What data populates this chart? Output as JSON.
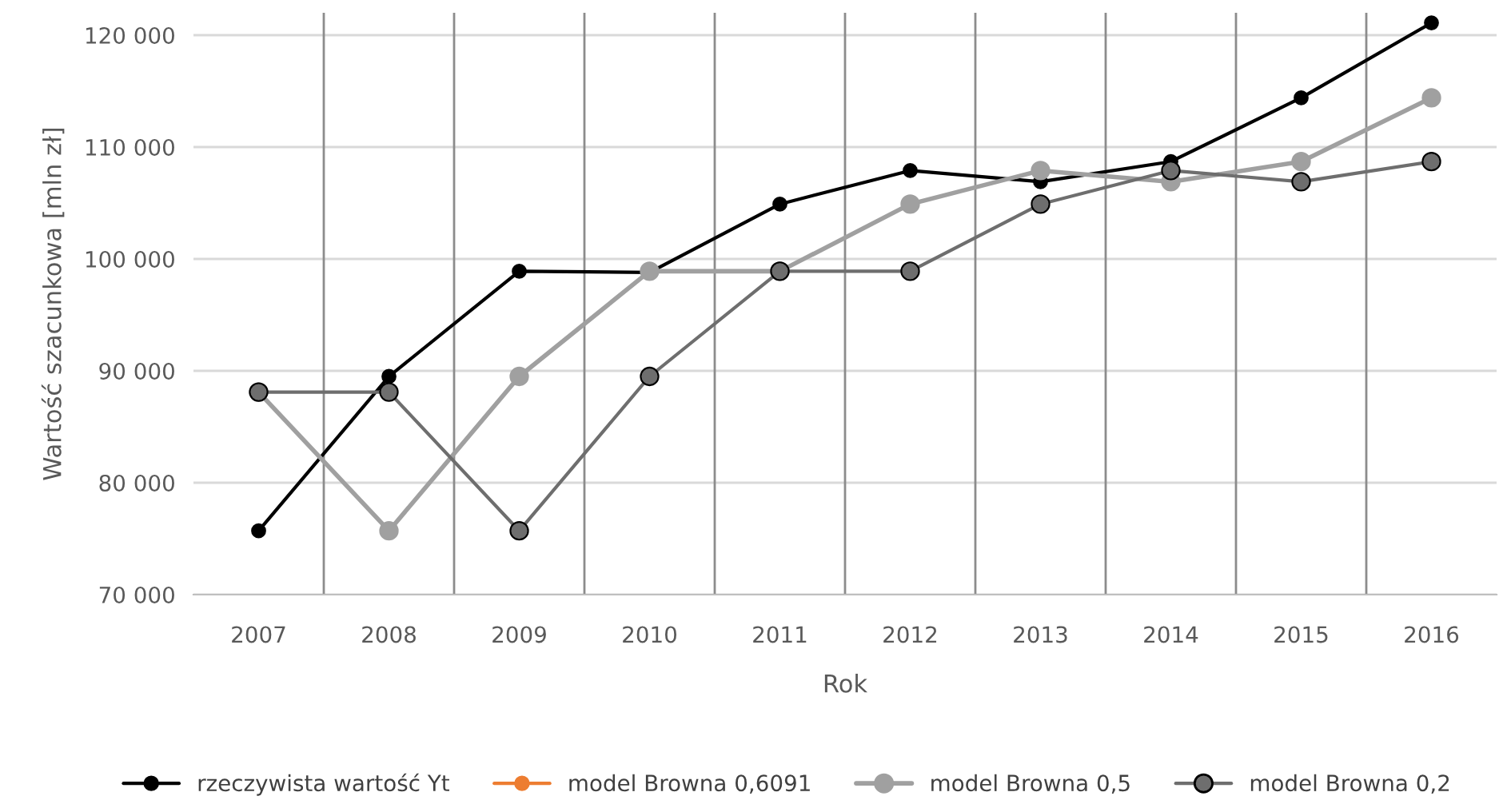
{
  "chart_data": {
    "type": "line",
    "xlabel": "Rok",
    "ylabel": "Wartość szacunkowa [mln zł]",
    "categories": [
      "2007",
      "2008",
      "2009",
      "2010",
      "2011",
      "2012",
      "2013",
      "2014",
      "2015",
      "2016"
    ],
    "series": [
      {
        "name": "rzeczywista wartość Yt",
        "color": "#000000",
        "values": [
          75700,
          89500,
          98900,
          98800,
          104900,
          107900,
          106900,
          108700,
          114400,
          121100
        ]
      },
      {
        "name": "model Browna 0,6091",
        "color": "#ed7d31",
        "values": [
          null,
          null,
          null,
          null,
          null,
          null,
          null,
          null,
          null,
          null
        ]
      },
      {
        "name": "model Browna 0,5",
        "color": "#a0a0a0",
        "values": [
          88100,
          75700,
          89500,
          98900,
          98900,
          104900,
          107900,
          106900,
          108700,
          114400
        ]
      },
      {
        "name": "model Browna 0,2",
        "color": "#6e6e6e",
        "values": [
          88100,
          88100,
          75700,
          89500,
          98900,
          98900,
          104900,
          107900,
          106900,
          108700
        ]
      }
    ],
    "ylim": [
      70000,
      122000
    ],
    "yticks": [
      {
        "value": 70000,
        "label": "70 000"
      },
      {
        "value": 80000,
        "label": "80 000"
      },
      {
        "value": 90000,
        "label": "90 000"
      },
      {
        "value": 100000,
        "label": "100 000"
      },
      {
        "value": 110000,
        "label": "110 000"
      },
      {
        "value": 120000,
        "label": "120 000"
      }
    ],
    "grid": true,
    "legend": "bottom",
    "marker": "circle",
    "line_style": "solid"
  }
}
